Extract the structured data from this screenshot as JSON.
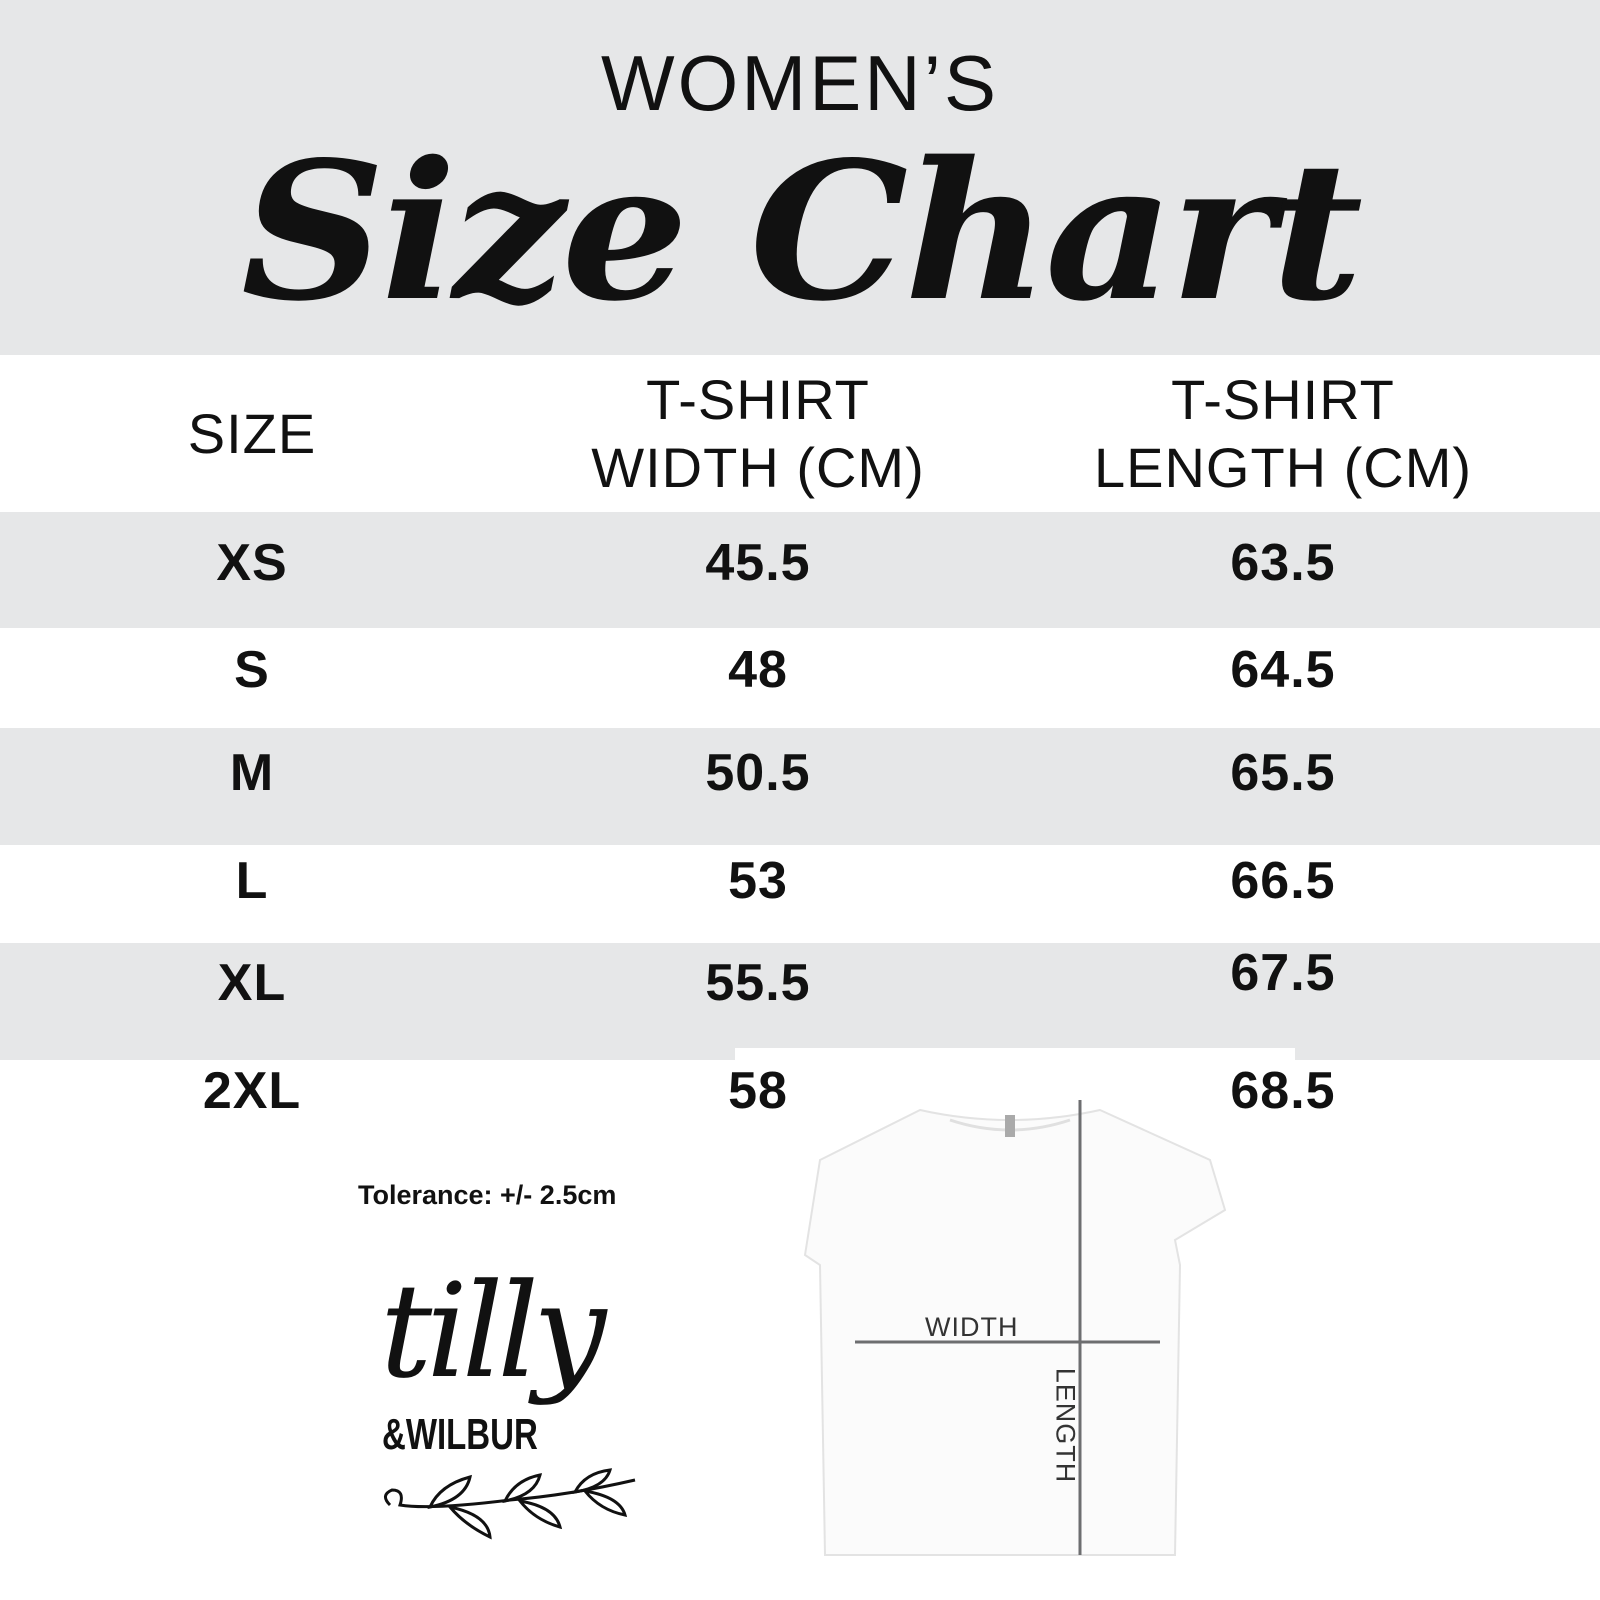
{
  "header": {
    "subtitle": "WOMEN’S",
    "title": "Size Chart"
  },
  "table": {
    "columns": [
      "SIZE",
      "T-SHIRT\nWIDTH (CM)",
      "T-SHIRT\nLENGTH (CM)"
    ],
    "col_lines": [
      [
        "SIZE"
      ],
      [
        "T-SHIRT",
        "WIDTH (CM)"
      ],
      [
        "T-SHIRT",
        "LENGTH (CM)"
      ]
    ],
    "rows": [
      {
        "size": "XS",
        "width": "45.5",
        "length": "63.5"
      },
      {
        "size": "S",
        "width": "48",
        "length": "64.5"
      },
      {
        "size": "M",
        "width": "50.5",
        "length": "65.5"
      },
      {
        "size": "L",
        "width": "53",
        "length": "66.5"
      },
      {
        "size": "XL",
        "width": "55.5",
        "length": "67.5"
      },
      {
        "size": "2XL",
        "width": "58",
        "length": "68.5"
      }
    ]
  },
  "tolerance": "Tolerance: +/- 2.5cm",
  "diagram": {
    "width_label": "WIDTH",
    "length_label": "LENGTH"
  },
  "logo": {
    "line1": "tilly",
    "line2": "&WILBUR"
  },
  "colors": {
    "band": "#e6e7e8",
    "text": "#111111",
    "measure_line": "#6d6e70"
  }
}
